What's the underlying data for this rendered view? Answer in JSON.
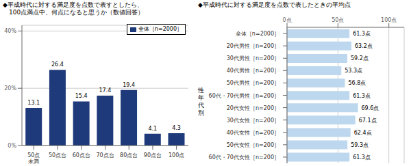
{
  "chart_data": [
    {
      "type": "bar",
      "title": "◆平成時代に対する満足度を点数で表すとしたら、\n　100点満点中、何点になると思うか（数値回答）",
      "categories": [
        "50点\n未満",
        "50点台",
        "60点台",
        "70点台",
        "80点台",
        "90点台",
        "100点"
      ],
      "series": [
        {
          "name": "全体［n=2000］",
          "color": "#1F3A7A",
          "values": [
            13.1,
            26.4,
            15.4,
            17.4,
            19.4,
            4.1,
            4.3
          ]
        }
      ],
      "ylim": [
        0,
        42
      ],
      "yticks": [
        {
          "value": 0,
          "label": "0%"
        },
        {
          "value": 20,
          "label": "20%"
        },
        {
          "value": 40,
          "label": "40%"
        }
      ],
      "grid": true,
      "legend": "upper right",
      "data_labels": true
    },
    {
      "type": "bar",
      "orientation": "horizontal",
      "title": "◆平成時代に対する満足度を点数で表したときの平均点",
      "categories": [
        "全体［n=2000］",
        "20代男性［n=200］",
        "30代男性［n=200］",
        "40代男性［n=200］",
        "50代男性［n=200］",
        "60代・70代男性［n=200］",
        "20代女性［n=200］",
        "30代女性［n=200］",
        "40代女性［n=200］",
        "50代女性［n=200］",
        "60代・70代女性［n=200］"
      ],
      "values": [
        61.3,
        63.2,
        59.2,
        53.3,
        56.8,
        61.3,
        69.6,
        67.1,
        62.4,
        59.3,
        61.3
      ],
      "value_labels": [
        "61.3点",
        "63.2点",
        "59.2点",
        "53.3点",
        "56.8点",
        "61.3点",
        "69.6点",
        "67.1点",
        "62.4点",
        "59.3点",
        "61.3点"
      ],
      "color": "#BDD7EE",
      "xlim": [
        0,
        115
      ],
      "xticks": [
        {
          "value": 0,
          "label": "0点"
        },
        {
          "value": 50,
          "label": "50点"
        },
        {
          "value": 100,
          "label": "100点"
        }
      ],
      "grid": true,
      "data_labels": true,
      "annotations": [
        "性\n年\n代\n別"
      ]
    }
  ]
}
